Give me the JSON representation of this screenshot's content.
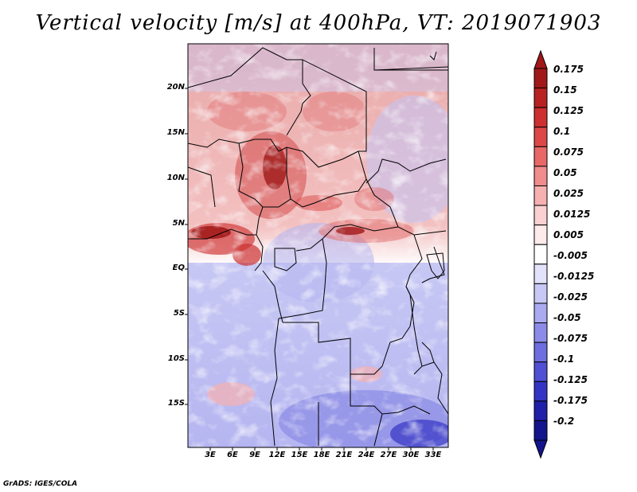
{
  "title": "Vertical velocity [m/s] at 400hPa, VT: 2019071903",
  "map": {
    "lat_labels": [
      "20N",
      "15N",
      "10N",
      "5N",
      "EQ",
      "5S",
      "10S",
      "15S"
    ],
    "lon_labels": [
      "3E",
      "6E",
      "9E",
      "12E",
      "15E",
      "18E",
      "21E",
      "24E",
      "27E",
      "30E",
      "33E"
    ],
    "colors": {
      "positive": "#c02020",
      "negative": "#3030c0",
      "neutral": "#ffffff"
    }
  },
  "colorbar": {
    "labels": [
      "0.175",
      "0.15",
      "0.125",
      "0.1",
      "0.075",
      "0.05",
      "0.025",
      "0.0125",
      "0.005",
      "-0.005",
      "-0.0125",
      "-0.025",
      "-0.05",
      "-0.075",
      "-0.1",
      "-0.125",
      "-0.175",
      "-0.2"
    ],
    "colors": [
      "#a01818",
      "#b82222",
      "#cc3030",
      "#dc4848",
      "#e86868",
      "#f08c8c",
      "#f6b0b0",
      "#fad0d0",
      "#fdeaea",
      "#ffffff",
      "#e2e2fb",
      "#c8c8f6",
      "#aaaaf0",
      "#8c8ce8",
      "#6e6ee0",
      "#5050d4",
      "#3434c4",
      "#2020a8",
      "#14148c"
    ]
  },
  "credit": "GrADS: IGES/COLA"
}
